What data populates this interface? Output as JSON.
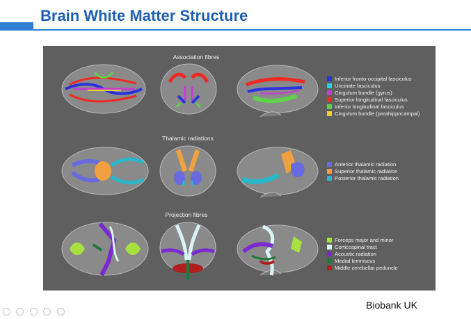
{
  "slide": {
    "title": "Brain White Matter Structure",
    "credit": "Biobank UK"
  },
  "figure": {
    "rows": [
      {
        "heading": "Association fibres",
        "legend": [
          {
            "label": "Inferior fronto-occipital fasciculus",
            "color": "#2a32e0"
          },
          {
            "label": "Uncinate fasciculus",
            "color": "#1ed6e6"
          },
          {
            "label": "Cingulum bundle (gyrus)",
            "color": "#c63ad6"
          },
          {
            "label": "Superior longitudinal fasciculus",
            "color": "#ee2a22"
          },
          {
            "label": "Inferior longitudinal fasciculus",
            "color": "#5fd14a"
          },
          {
            "label": "Cingulum bundle (parahippocampal)",
            "color": "#ead32a"
          }
        ]
      },
      {
        "heading": "Thalamic radiations",
        "legend": [
          {
            "label": "Anterior thalamic radiation",
            "color": "#6a6ae0"
          },
          {
            "label": "Superior thalamic radiation",
            "color": "#f0a040"
          },
          {
            "label": "Posterior thalamic radiation",
            "color": "#26b8c8"
          }
        ]
      },
      {
        "heading": "Projection fibres",
        "legend": [
          {
            "label": "Forceps major and minor",
            "color": "#a8e040"
          },
          {
            "label": "Corticospinal tract",
            "color": "#d8f4f4"
          },
          {
            "label": "Acoustic radiation",
            "color": "#7a2ad0"
          },
          {
            "label": "Medial lemniscus",
            "color": "#1f7a3a"
          },
          {
            "label": "Middle cerebellar peduncle",
            "color": "#b01e1e"
          }
        ]
      }
    ]
  }
}
